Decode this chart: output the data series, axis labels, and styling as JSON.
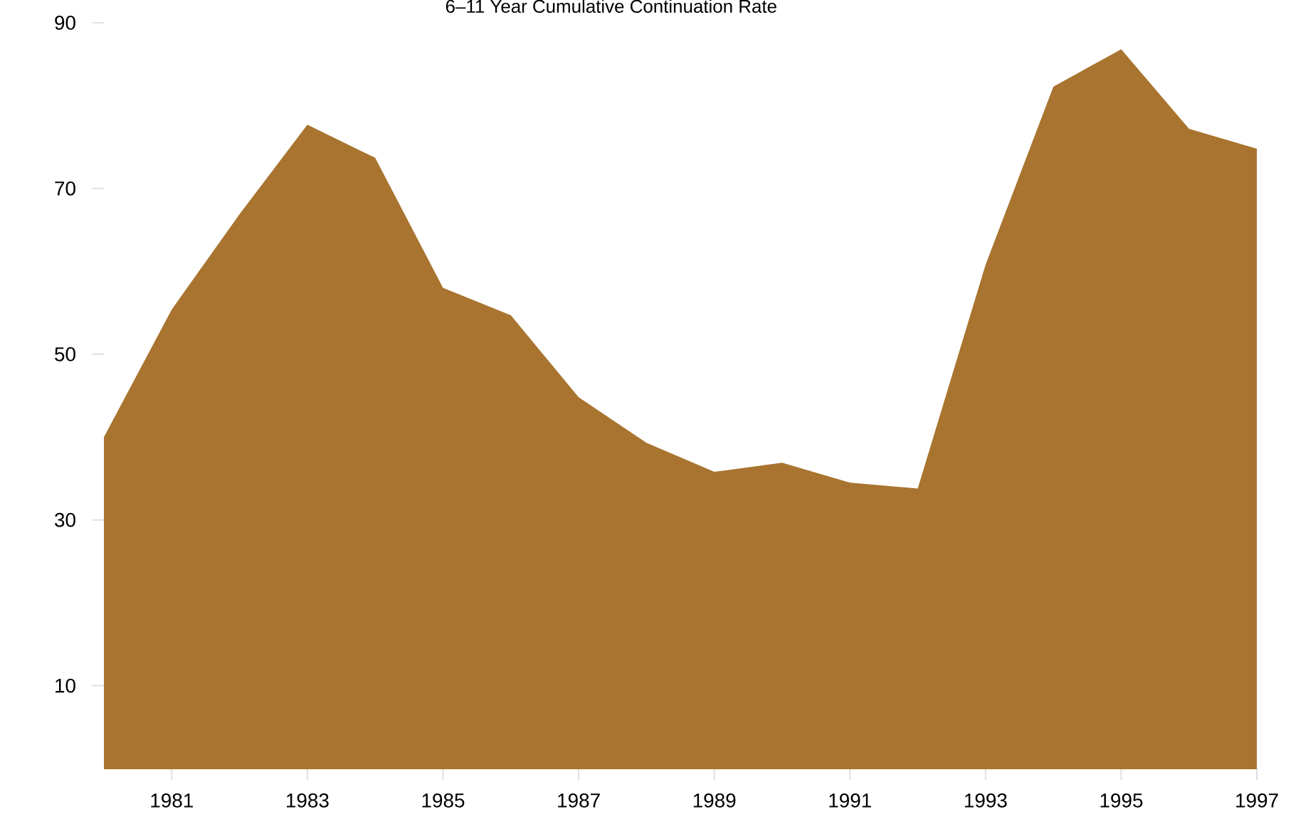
{
  "chart_data": {
    "type": "area",
    "title": "6–11 Year Cumulative Continuation Rate",
    "x": [
      1980,
      1981,
      1982,
      1983,
      1984,
      1985,
      1986,
      1987,
      1988,
      1989,
      1990,
      1991,
      1992,
      1993,
      1994,
      1995,
      1996,
      1997
    ],
    "values": [
      40.0,
      55.4,
      66.9,
      77.7,
      73.7,
      58.0,
      54.7,
      44.8,
      39.3,
      35.8,
      36.9,
      34.5,
      33.8,
      60.8,
      82.3,
      86.8,
      77.2,
      74.8
    ],
    "color": "#a8742f",
    "xlim": [
      1980,
      1997
    ],
    "ylim": [
      0,
      90
    ],
    "xticks": [
      1981,
      1983,
      1985,
      1987,
      1989,
      1991,
      1993,
      1995,
      1997
    ],
    "yticks": [
      10,
      30,
      50,
      70,
      90
    ]
  }
}
